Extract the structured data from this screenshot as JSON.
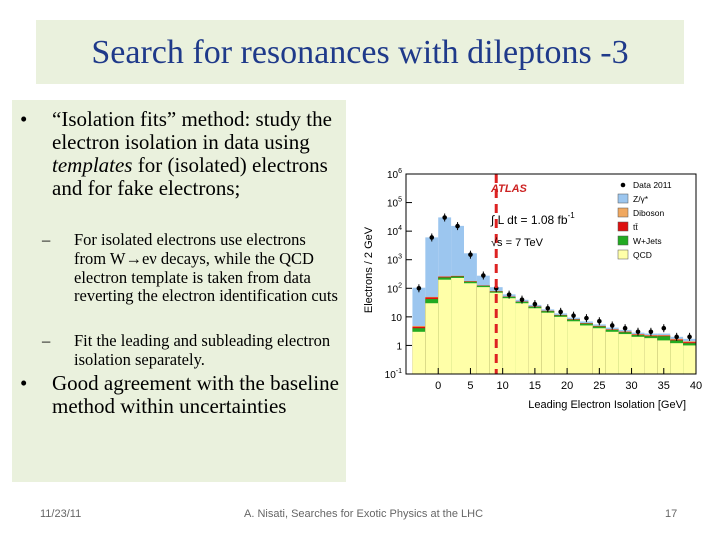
{
  "slide": {
    "title": "Search for resonances with dileptons -3",
    "bullets": {
      "b1_part1": "“Isolation fits” method: study the electron isolation in data using ",
      "b1_emph": "templates",
      "b1_part2": " for (isolated) electrons and for fake electrons;",
      "sub1_part1": "For isolated electrons use electrons from W",
      "sub1_arrow": "→",
      "sub1_part2": "eν decays, while the QCD electron template is taken from data reverting the electron  identification cuts",
      "sub2": "Fit the leading and subleading electron isolation separately.",
      "b2": "Good agreement with the baseline method within uncertainties"
    },
    "bullet_symbol": "•",
    "dash_symbol": "–",
    "footer": {
      "date": "11/23/11",
      "author": "A. Nisati, Searches for Exotic Physics at the LHC",
      "page": "17"
    }
  },
  "chart_data": {
    "type": "bar",
    "subtype": "stacked-histogram",
    "xlabel": "Leading Electron Isolation [GeV]",
    "ylabel": "Electrons / 2 GeV",
    "xlim": [
      -5,
      40
    ],
    "ylim": [
      0.1,
      1000000
    ],
    "yscale": "log",
    "x_ticks": [
      "0",
      "5",
      "10",
      "15",
      "20",
      "25",
      "30",
      "35",
      "40"
    ],
    "y_ticks": [
      "10^{-1}",
      "1",
      "10",
      "10^{2}",
      "10^{3}",
      "10^{4}",
      "10^{5}",
      "10^{6}"
    ],
    "annotations": {
      "experiment": "ATLAS",
      "lumi_prefix": "∫ L dt = 1.08 fb",
      "lumi_exp": "-1",
      "energy": "√s = 7 TeV"
    },
    "cut_line_x": 9,
    "legend_position": "top-right",
    "series": [
      {
        "name": "QCD",
        "color": "#ffffa8",
        "bins_x": [
          -4,
          -2,
          0,
          2,
          4,
          6,
          8,
          10,
          12,
          14,
          16,
          18,
          20,
          22,
          24,
          26,
          28,
          30,
          32,
          34,
          36,
          38
        ],
        "values": [
          3,
          30,
          200,
          230,
          150,
          110,
          70,
          45,
          30,
          20,
          14,
          10,
          7,
          5,
          4,
          3,
          2.5,
          2,
          1.8,
          1.5,
          1.2,
          1.0
        ]
      },
      {
        "name": "W+Jets",
        "color": "#22aa22",
        "bins_x": [
          -4,
          -2,
          0,
          2,
          4,
          6,
          8,
          10,
          12,
          14,
          16,
          18,
          20,
          22,
          24,
          26,
          28,
          30,
          32,
          34,
          36,
          38
        ],
        "values": [
          1,
          12,
          40,
          30,
          20,
          12,
          7,
          5,
          3.5,
          2.5,
          1.8,
          1.3,
          1,
          0.8,
          0.6,
          0.5,
          0.4,
          0.3,
          0.3,
          0.6,
          0.3,
          0.2
        ]
      },
      {
        "name": "tt̄",
        "color": "#dd1111",
        "bins_x": [
          -4,
          -2,
          0,
          2,
          4,
          6,
          8,
          10,
          12,
          14,
          16,
          18,
          20,
          22,
          24,
          26,
          28,
          30,
          32,
          34,
          36,
          38
        ],
        "values": [
          0.5,
          6,
          15,
          10,
          6,
          3,
          2,
          1,
          0.8,
          0.6,
          0.4,
          0.3,
          0.25,
          0.2,
          0.15,
          0.1,
          0.1,
          0.1,
          0.1,
          0.1,
          0.1,
          0.1
        ]
      },
      {
        "name": "Diboson",
        "color": "#f0a860",
        "bins_x": [
          -4,
          -2,
          0,
          2,
          4,
          6,
          8,
          10,
          12,
          14,
          16,
          18,
          20,
          22,
          24,
          26,
          28,
          30,
          32,
          34,
          36,
          38
        ],
        "values": [
          0.3,
          2,
          5,
          3,
          2,
          1,
          0.5,
          0.3,
          0.2,
          0.15,
          0.1,
          0.1,
          0.1,
          0.1,
          0.1,
          0.1,
          0.1,
          0.1,
          0.1,
          0.1,
          0.1,
          0.1
        ]
      },
      {
        "name": "Z/γ*",
        "color": "#9cc6ef",
        "bins_x": [
          -4,
          -2,
          0,
          2,
          4,
          6,
          8,
          10,
          12,
          14,
          16,
          18,
          20,
          22,
          24,
          26,
          28,
          30,
          32,
          34,
          36,
          38
        ],
        "values": [
          100,
          6000,
          30000,
          15000,
          1500,
          150,
          30,
          10,
          5,
          3,
          2,
          1.5,
          1,
          0.8,
          0.6,
          0.5,
          0.4,
          0.3,
          0.3,
          0.3,
          0.3,
          0.3
        ]
      },
      {
        "name": "Data 2011",
        "color": "#000000",
        "marker": "point",
        "x": [
          -3,
          -1,
          1,
          3,
          5,
          7,
          9,
          11,
          13,
          15,
          17,
          19,
          21,
          23,
          25,
          27,
          29,
          31,
          33,
          35,
          37,
          39
        ],
        "values": [
          100,
          6000,
          30000,
          15000,
          1500,
          280,
          100,
          60,
          40,
          28,
          20,
          15,
          11,
          9,
          7,
          5,
          4,
          3,
          3,
          4,
          2,
          2
        ]
      }
    ]
  }
}
